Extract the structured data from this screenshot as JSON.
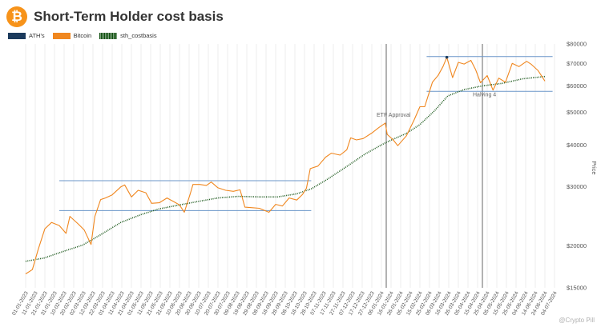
{
  "header": {
    "title": "Short-Term Holder cost basis",
    "logo_icon": "bitcoin-icon",
    "logo_glyph": "₿"
  },
  "watermark": "@Crypto Pill",
  "colors": {
    "ath": "#1b3a5c",
    "bitcoin": "#f0871f",
    "sth": "#1e5a1e",
    "range": "#6a96c8",
    "marker": "#555555",
    "grid": "#eeeeee"
  },
  "chart_data": {
    "type": "line",
    "yscale": "log",
    "ylabel": "Price",
    "ylim": [
      15000,
      80000
    ],
    "y_ticks": [
      15000,
      20000,
      30000,
      40000,
      50000,
      60000,
      70000,
      80000
    ],
    "y_tick_labels": [
      "$15000",
      "$20000",
      "$30000",
      "$40000",
      "$50000",
      "$60000",
      "$70000",
      "$80000"
    ],
    "x_range": [
      "2023-01-01",
      "2024-07-09"
    ],
    "x_tick_labels": [
      "01-01-2023",
      "11-01-2023",
      "21-01-2023",
      "31-01-2023",
      "10-02-2023",
      "20-02-2023",
      "02-03-2023",
      "12-03-2023",
      "22-03-2023",
      "01-04-2023",
      "11-04-2023",
      "21-04-2023",
      "01-05-2023",
      "11-05-2023",
      "21-05-2023",
      "31-05-2023",
      "10-06-2023",
      "20-06-2023",
      "30-06-2023",
      "10-07-2023",
      "20-07-2023",
      "30-07-2023",
      "09-08-2023",
      "19-08-2023",
      "29-08-2023",
      "08-09-2023",
      "18-09-2023",
      "28-09-2023",
      "08-10-2023",
      "18-10-2023",
      "28-10-2023",
      "07-11-2023",
      "17-11-2023",
      "27-11-2023",
      "07-12-2023",
      "17-12-2023",
      "27-12-2023",
      "06-01-2024",
      "16-01-2024",
      "26-01-2024",
      "05-02-2024",
      "15-02-2024",
      "25-02-2024",
      "06-03-2024",
      "16-03-2024",
      "26-03-2024",
      "05-04-2024",
      "15-04-2024",
      "25-04-2024",
      "05-05-2024",
      "15-05-2024",
      "25-05-2024",
      "04-06-2024",
      "14-06-2024",
      "24-06-2024",
      "04-07-2024"
    ],
    "legend": [
      "ATH's",
      "Bitcoin",
      "sth_costbasis"
    ],
    "series": [
      {
        "name": "Bitcoin",
        "color": "#f0871f",
        "x": [
          "2023-01-01",
          "2023-01-08",
          "2023-01-14",
          "2023-01-21",
          "2023-01-28",
          "2023-02-05",
          "2023-02-12",
          "2023-02-16",
          "2023-02-25",
          "2023-03-03",
          "2023-03-10",
          "2023-03-14",
          "2023-03-20",
          "2023-03-25",
          "2023-04-01",
          "2023-04-10",
          "2023-04-14",
          "2023-04-21",
          "2023-04-28",
          "2023-05-06",
          "2023-05-12",
          "2023-05-20",
          "2023-05-28",
          "2023-06-05",
          "2023-06-10",
          "2023-06-15",
          "2023-06-21",
          "2023-06-24",
          "2023-07-01",
          "2023-07-08",
          "2023-07-13",
          "2023-07-20",
          "2023-07-28",
          "2023-08-05",
          "2023-08-12",
          "2023-08-17",
          "2023-08-25",
          "2023-09-01",
          "2023-09-11",
          "2023-09-18",
          "2023-09-25",
          "2023-10-02",
          "2023-10-10",
          "2023-10-16",
          "2023-10-20",
          "2023-10-24",
          "2023-11-01",
          "2023-11-09",
          "2023-11-15",
          "2023-11-24",
          "2023-12-01",
          "2023-12-05",
          "2023-12-11",
          "2023-12-18",
          "2023-12-27",
          "2024-01-03",
          "2024-01-10",
          "2024-01-12",
          "2024-01-18",
          "2024-01-23",
          "2024-02-01",
          "2024-02-09",
          "2024-02-15",
          "2024-02-20",
          "2024-02-28",
          "2024-03-05",
          "2024-03-10",
          "2024-03-14",
          "2024-03-20",
          "2024-03-26",
          "2024-04-01",
          "2024-04-08",
          "2024-04-13",
          "2024-04-18",
          "2024-04-25",
          "2024-05-01",
          "2024-05-07",
          "2024-05-14",
          "2024-05-21",
          "2024-05-28",
          "2024-06-05",
          "2024-06-10",
          "2024-06-17",
          "2024-06-24"
        ],
        "values": [
          16500,
          17000,
          19500,
          22500,
          23500,
          23000,
          21800,
          24500,
          23200,
          22300,
          20200,
          24500,
          27500,
          27800,
          28400,
          30000,
          30400,
          28000,
          29300,
          28800,
          26800,
          26900,
          27800,
          27000,
          26500,
          25200,
          28500,
          30500,
          30500,
          30300,
          31000,
          29800,
          29300,
          29100,
          29400,
          26100,
          26000,
          25900,
          25200,
          26600,
          26300,
          27800,
          27400,
          28500,
          29700,
          34000,
          34600,
          36800,
          37800,
          37300,
          38700,
          42000,
          41400,
          41800,
          43400,
          45000,
          46500,
          43000,
          41500,
          39800,
          42600,
          47500,
          52000,
          52000,
          61500,
          64500,
          68500,
          73000,
          63500,
          70500,
          69700,
          71500,
          67000,
          61300,
          64400,
          58300,
          63300,
          61500,
          70000,
          68500,
          71000,
          69500,
          66600,
          62000
        ]
      },
      {
        "name": "sth_costbasis",
        "color": "#1e5a1e",
        "x": [
          "2023-01-01",
          "2023-01-20",
          "2023-02-10",
          "2023-03-01",
          "2023-03-20",
          "2023-04-10",
          "2023-05-01",
          "2023-05-20",
          "2023-06-10",
          "2023-07-01",
          "2023-07-20",
          "2023-08-10",
          "2023-09-01",
          "2023-09-20",
          "2023-10-10",
          "2023-10-25",
          "2023-11-10",
          "2023-12-01",
          "2023-12-20",
          "2024-01-10",
          "2024-02-01",
          "2024-02-15",
          "2024-03-01",
          "2024-03-15",
          "2024-04-01",
          "2024-04-20",
          "2024-05-10",
          "2024-06-01",
          "2024-06-24"
        ],
        "values": [
          18000,
          18400,
          19300,
          20100,
          21600,
          23500,
          24800,
          25800,
          26500,
          27200,
          27800,
          28100,
          28000,
          28000,
          28600,
          29600,
          31500,
          34500,
          37600,
          40600,
          43300,
          46000,
          50500,
          56000,
          58500,
          60000,
          61000,
          63000,
          64000
        ]
      }
    ],
    "ath_series": {
      "name": "ATH's",
      "x": [
        "2024-03-14"
      ],
      "values": [
        73000
      ]
    },
    "ranges": [
      {
        "y": 31300,
        "x_start": "2023-02-05",
        "x_end": "2023-10-25"
      },
      {
        "y": 25500,
        "x_start": "2023-02-05",
        "x_end": "2023-10-25"
      },
      {
        "y": 73400,
        "x_start": "2024-02-22",
        "x_end": "2024-07-02"
      },
      {
        "y": 57800,
        "x_start": "2024-02-22",
        "x_end": "2024-07-02"
      }
    ],
    "markers": [
      {
        "x": "2024-01-11",
        "label": "ETF Approval",
        "label_y": 48500
      },
      {
        "x": "2024-04-20",
        "label": "Halving 4",
        "label_y": 55800
      }
    ]
  }
}
